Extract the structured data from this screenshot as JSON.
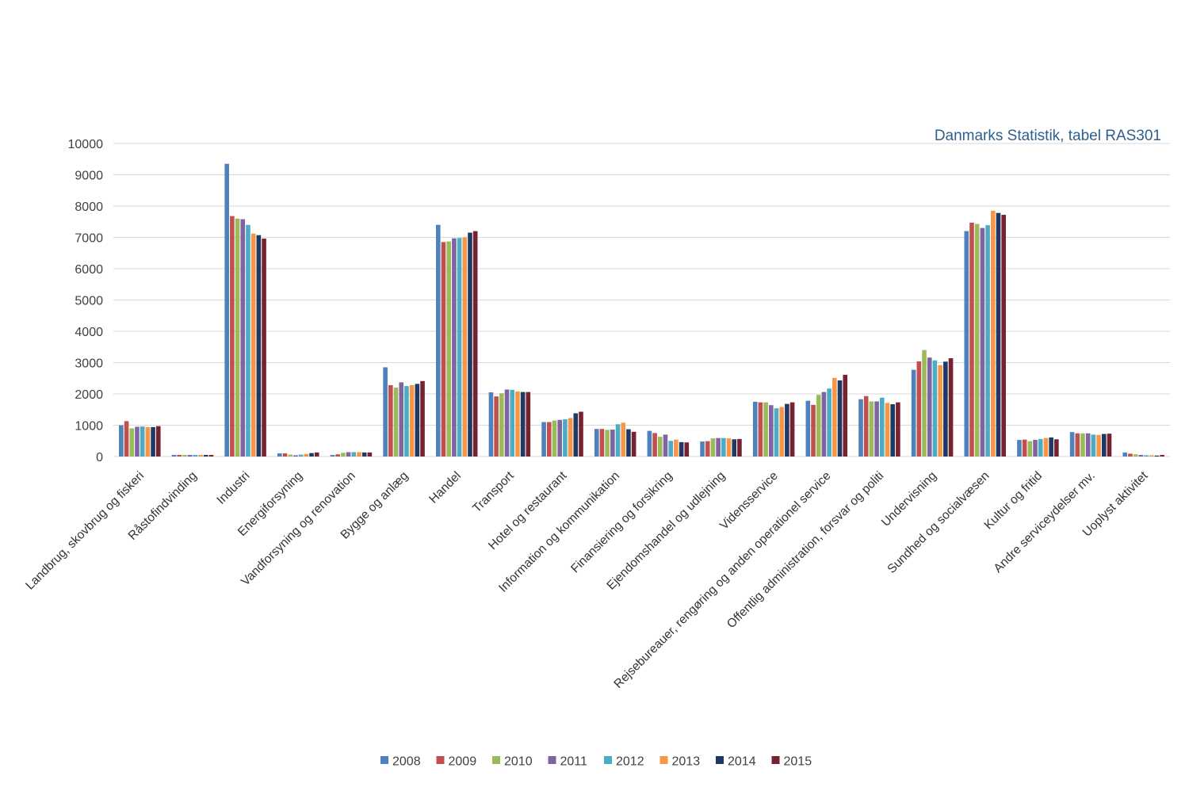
{
  "chart_data": {
    "type": "bar",
    "source_note": "Danmarks Statistik, tabel RAS301",
    "ylim": [
      0,
      10000
    ],
    "y_ticks": [
      "0",
      "1000",
      "2000",
      "3000",
      "4000",
      "5000",
      "6000",
      "7000",
      "8000",
      "9000",
      "10000"
    ],
    "grid": true,
    "legend_position": "bottom",
    "categories": [
      "Landbrug, skovbrug og fiskeri",
      "Råstofindvinding",
      "Industri",
      "Energiforsyning",
      "Vandforsyning og renovation",
      "Bygge og anlæg",
      "Handel",
      "Transport",
      "Hotel og restaurant",
      "Information og kommunikation",
      "Finansiering og forsikring",
      "Ejendomshandel og udlejning",
      "Vidensservice",
      "Rejsebureauer, rengøring og anden operationel service",
      "Offentlig administration, forsvar og politi",
      "Undervisning",
      "Sundhed og socialvæsen",
      "Kultur og fritid",
      "Andre serviceydelser mv.",
      "Uoplyst aktivitet"
    ],
    "series": [
      {
        "name": "2008",
        "color": "#4f81bd",
        "values": [
          1000,
          50,
          9350,
          100,
          50,
          2850,
          7400,
          2050,
          1100,
          880,
          820,
          480,
          1750,
          1780,
          1830,
          2770,
          7200,
          530,
          780,
          130
        ]
      },
      {
        "name": "2009",
        "color": "#c0504d",
        "values": [
          1130,
          50,
          7680,
          100,
          70,
          2280,
          6850,
          1920,
          1100,
          880,
          750,
          490,
          1730,
          1650,
          1930,
          3040,
          7470,
          540,
          740,
          90
        ]
      },
      {
        "name": "2010",
        "color": "#9bbb59",
        "values": [
          900,
          50,
          7600,
          60,
          120,
          2200,
          6870,
          2020,
          1150,
          850,
          630,
          580,
          1730,
          1970,
          1760,
          3400,
          7430,
          490,
          740,
          70
        ]
      },
      {
        "name": "2011",
        "color": "#8064a2",
        "values": [
          950,
          50,
          7580,
          40,
          140,
          2370,
          6970,
          2140,
          1170,
          860,
          700,
          590,
          1640,
          2060,
          1760,
          3160,
          7300,
          530,
          740,
          50
        ]
      },
      {
        "name": "2012",
        "color": "#4bacc6",
        "values": [
          960,
          50,
          7400,
          60,
          140,
          2250,
          6980,
          2130,
          1190,
          1030,
          500,
          590,
          1540,
          2170,
          1880,
          3070,
          7390,
          560,
          700,
          40
        ]
      },
      {
        "name": "2013",
        "color": "#f79646",
        "values": [
          940,
          50,
          7120,
          80,
          140,
          2280,
          7000,
          2080,
          1230,
          1080,
          540,
          580,
          1580,
          2510,
          1710,
          2920,
          7850,
          590,
          690,
          40
        ]
      },
      {
        "name": "2014",
        "color": "#1f3864",
        "values": [
          940,
          50,
          7070,
          110,
          130,
          2320,
          7150,
          2060,
          1380,
          870,
          460,
          550,
          1680,
          2430,
          1670,
          3030,
          7780,
          610,
          720,
          30
        ]
      },
      {
        "name": "2015",
        "color": "#772230",
        "values": [
          970,
          50,
          6960,
          130,
          130,
          2410,
          7200,
          2060,
          1430,
          790,
          450,
          560,
          1730,
          2610,
          1730,
          3140,
          7720,
          550,
          730,
          50
        ]
      }
    ]
  }
}
